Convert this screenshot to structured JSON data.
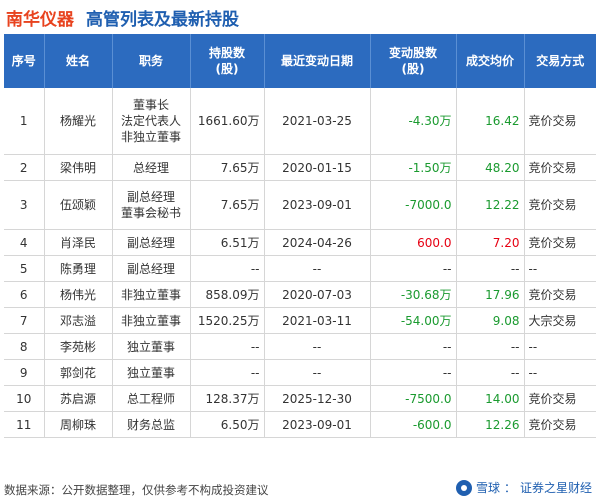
{
  "header": {
    "company": "南华仪器",
    "subject": "高管列表及最新持股"
  },
  "table": {
    "columns": [
      "序号",
      "姓名",
      "职务",
      "持股数(股)",
      "最近变动日期",
      "变动股数(股)",
      "成交均价",
      "交易方式"
    ],
    "rows": [
      {
        "no": "1",
        "name": "杨耀光",
        "positions": [
          "董事长",
          "法定代表人",
          "非独立董事"
        ],
        "shares": "1661.60万",
        "date": "2021-03-25",
        "change": "-4.30万",
        "price": "16.42",
        "method": "竞价交易",
        "dir": "down"
      },
      {
        "no": "2",
        "name": "梁伟明",
        "positions": [
          "总经理"
        ],
        "shares": "7.65万",
        "date": "2020-01-15",
        "change": "-1.50万",
        "price": "48.20",
        "method": "竞价交易",
        "dir": "down"
      },
      {
        "no": "3",
        "name": "伍颂颖",
        "positions": [
          "副总经理",
          "董事会秘书"
        ],
        "shares": "7.65万",
        "date": "2023-09-01",
        "change": "-7000.0",
        "price": "12.22",
        "method": "竞价交易",
        "dir": "down"
      },
      {
        "no": "4",
        "name": "肖泽民",
        "positions": [
          "副总经理"
        ],
        "shares": "6.51万",
        "date": "2024-04-26",
        "change": "600.0",
        "price": "7.20",
        "method": "竞价交易",
        "dir": "up"
      },
      {
        "no": "5",
        "name": "陈勇理",
        "positions": [
          "副总经理"
        ],
        "shares": "--",
        "date": "--",
        "change": "--",
        "price": "--",
        "method": "--",
        "dir": "none"
      },
      {
        "no": "6",
        "name": "杨伟光",
        "positions": [
          "非独立董事"
        ],
        "shares": "858.09万",
        "date": "2020-07-03",
        "change": "-30.68万",
        "price": "17.96",
        "method": "竞价交易",
        "dir": "down"
      },
      {
        "no": "7",
        "name": "邓志溢",
        "positions": [
          "非独立董事"
        ],
        "shares": "1520.25万",
        "date": "2021-03-11",
        "change": "-54.00万",
        "price": "9.08",
        "method": "大宗交易",
        "dir": "down"
      },
      {
        "no": "8",
        "name": "李苑彬",
        "positions": [
          "独立董事"
        ],
        "shares": "--",
        "date": "--",
        "change": "--",
        "price": "--",
        "method": "--",
        "dir": "none"
      },
      {
        "no": "9",
        "name": "郭剑花",
        "positions": [
          "独立董事"
        ],
        "shares": "--",
        "date": "--",
        "change": "--",
        "price": "--",
        "method": "--",
        "dir": "none"
      },
      {
        "no": "10",
        "name": "苏启源",
        "positions": [
          "总工程师"
        ],
        "shares": "128.37万",
        "date": "2025-12-30",
        "change": "-7500.0",
        "price": "14.00",
        "method": "竞价交易",
        "dir": "down"
      },
      {
        "no": "11",
        "name": "周柳珠",
        "positions": [
          "财务总监"
        ],
        "shares": "6.50万",
        "date": "2023-09-01",
        "change": "-600.0",
        "price": "12.26",
        "method": "竞价交易",
        "dir": "down"
      }
    ]
  },
  "footer": {
    "source": "数据来源：公开数据整理，仅供参考不构成投资建议",
    "brand_left": "雪球",
    "separator": "：",
    "brand_right": "证券之星财经"
  },
  "colors": {
    "company": "#e8431f",
    "subject": "#1f5fb0",
    "header_bg": "#2c6bbf",
    "up": "#e60012",
    "down": "#1a9a2f"
  }
}
